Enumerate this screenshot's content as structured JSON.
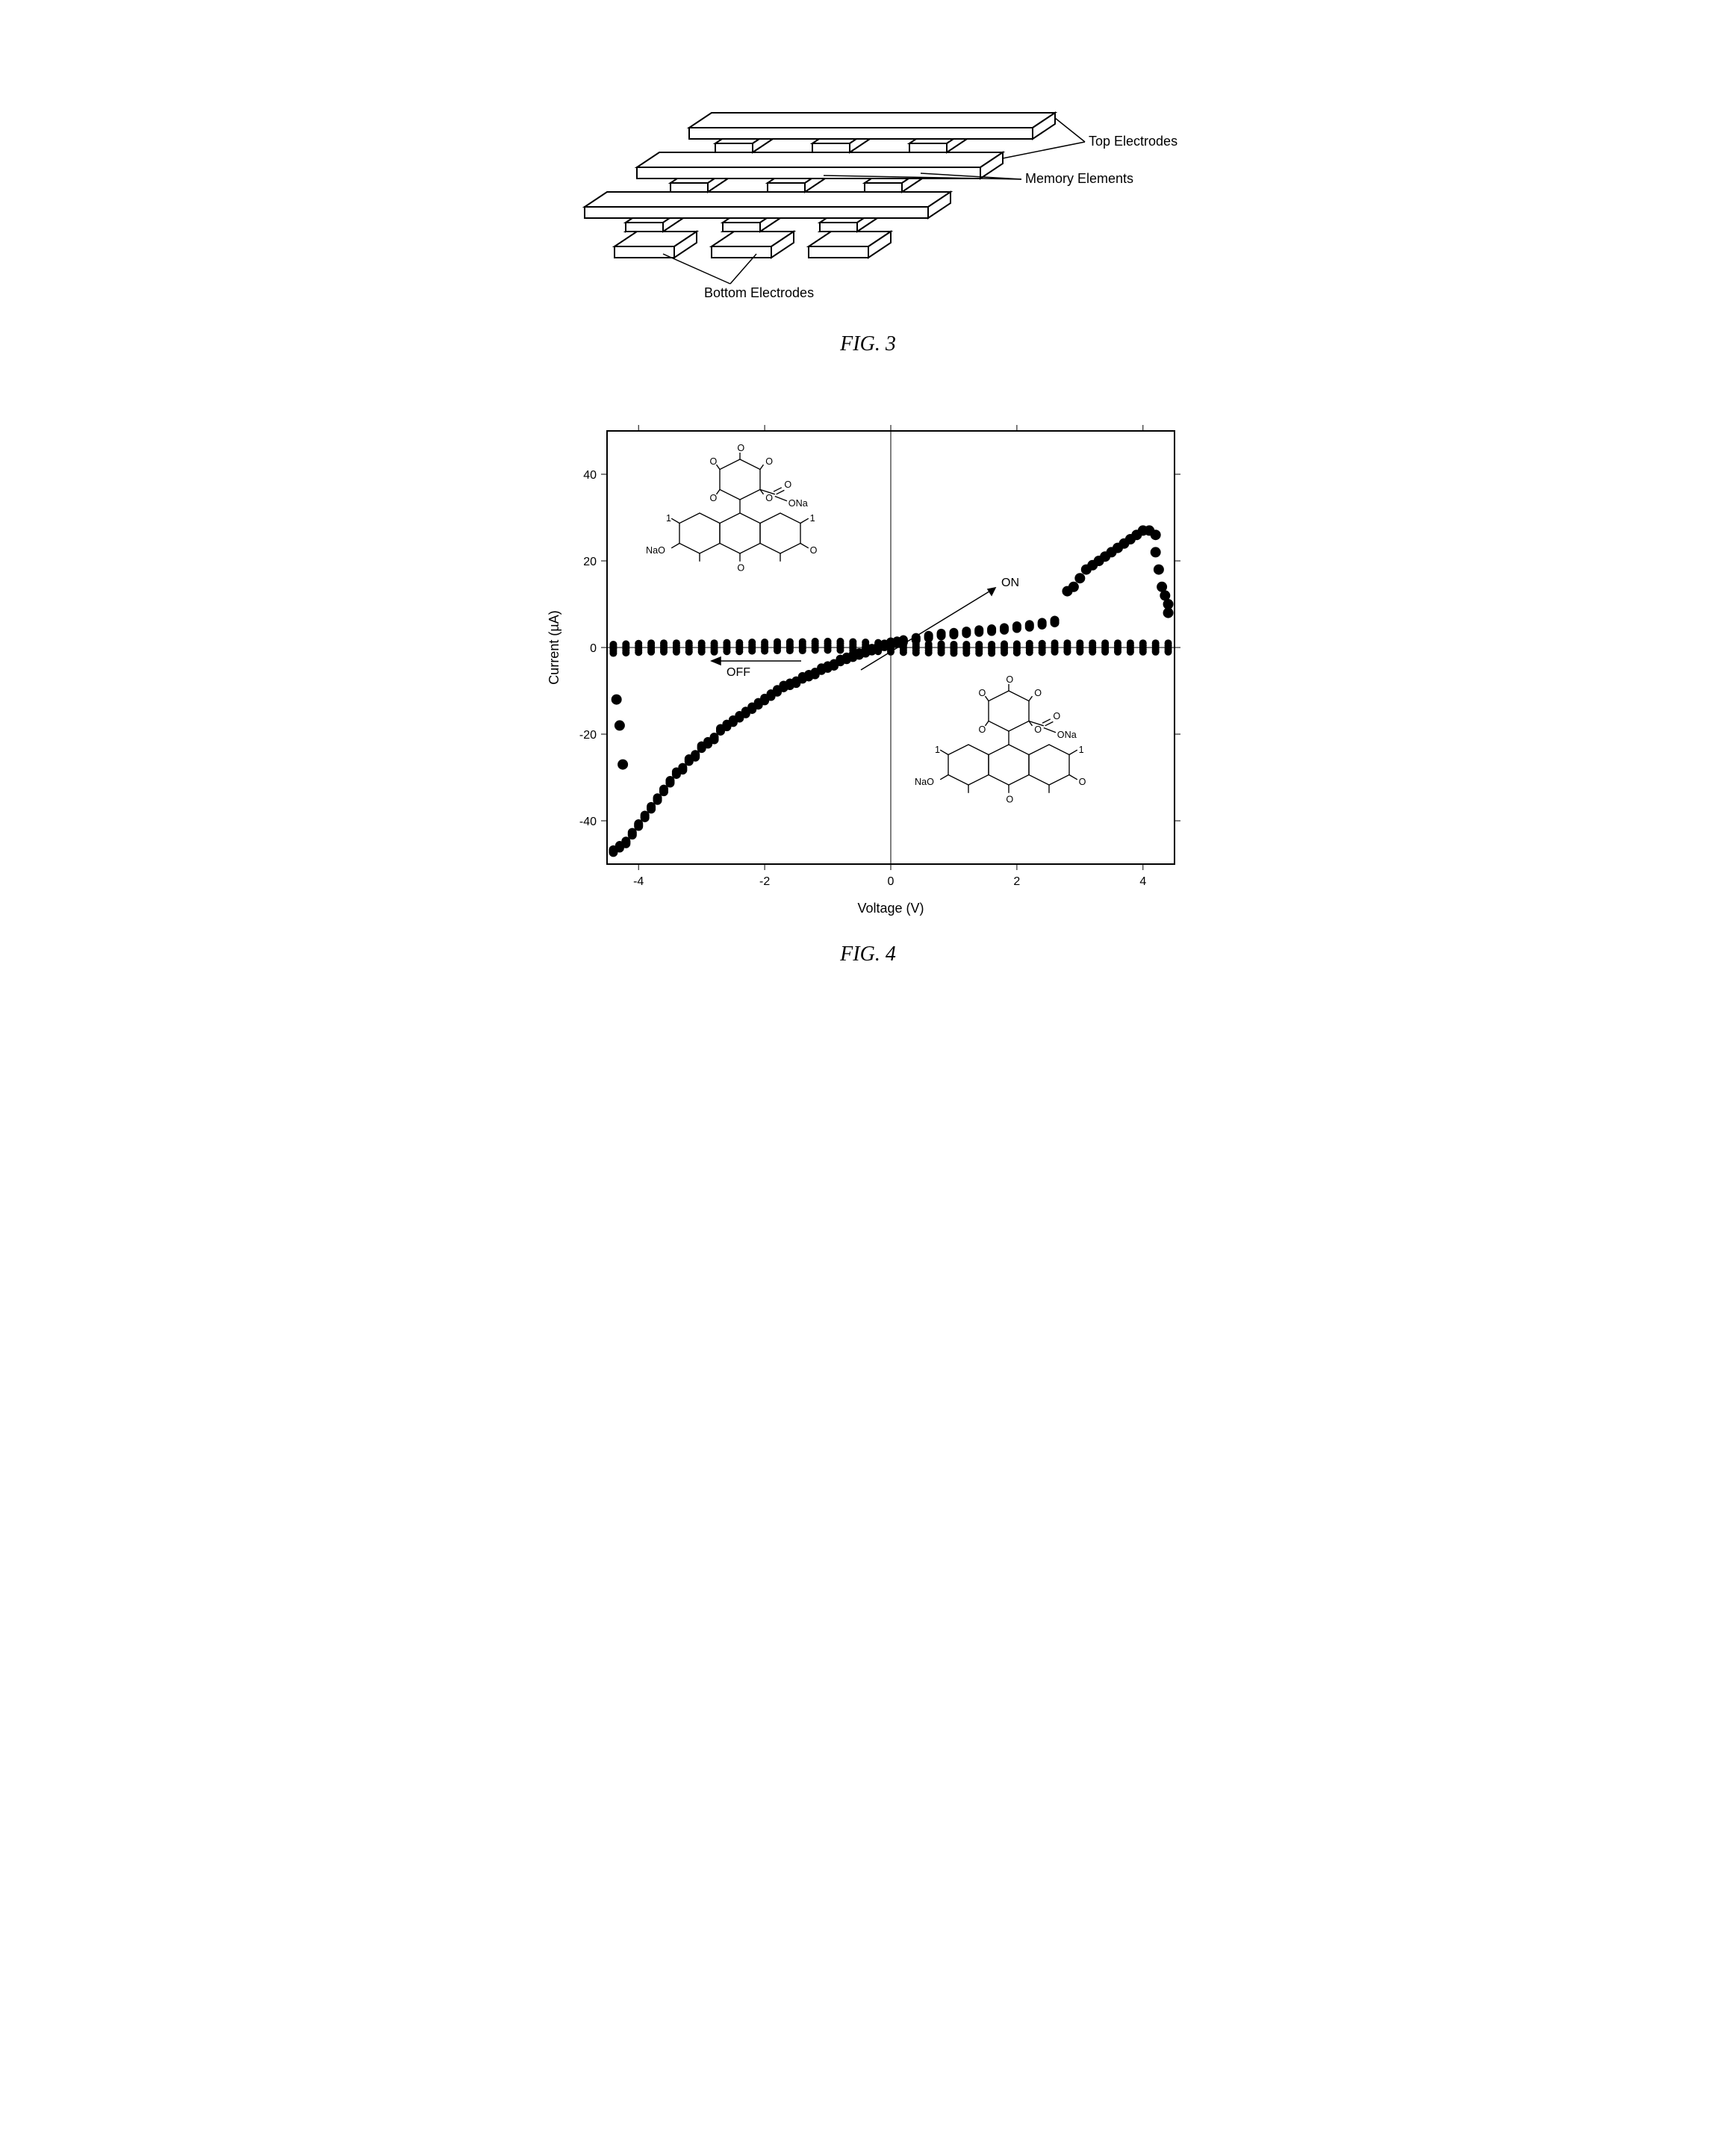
{
  "fig3": {
    "title": "FIG. 3",
    "labels": {
      "top": "Top Electrodes",
      "memory": "Memory Elements",
      "bottom": "Bottom Electrodes"
    },
    "stroke": "#000000",
    "fill": "#ffffff",
    "stroke_width": 2
  },
  "fig4": {
    "title": "FIG. 4",
    "type": "scatter",
    "xlabel": "Voltage (V)",
    "ylabel": "Current (µA)",
    "xlim": [
      -4.5,
      4.5
    ],
    "ylim": [
      -50,
      50
    ],
    "xticks": [
      -4,
      -2,
      0,
      2,
      4
    ],
    "yticks": [
      -40,
      -20,
      0,
      20,
      40
    ],
    "plot_bg": "#ffffff",
    "axis_color": "#000000",
    "marker_color": "#000000",
    "marker_size": 6,
    "border_width": 2,
    "annotations": {
      "on": "ON",
      "off": "OFF"
    },
    "molecule_atoms": {
      "O": "O",
      "ONa": "ONa",
      "NaO": "NaO",
      "one": "1"
    },
    "flat_line": [
      [
        -4.4,
        -0.3
      ],
      [
        -4.2,
        -0.2
      ],
      [
        -4,
        -0.1
      ],
      [
        -3.8,
        0
      ],
      [
        -3.6,
        0
      ],
      [
        -3.4,
        0
      ],
      [
        -3.2,
        0
      ],
      [
        -3,
        0
      ],
      [
        -2.8,
        0
      ],
      [
        -2.6,
        0.1
      ],
      [
        -2.4,
        0.1
      ],
      [
        -2.2,
        0.2
      ],
      [
        -2,
        0.2
      ],
      [
        -1.8,
        0.3
      ],
      [
        -1.6,
        0.3
      ],
      [
        -1.4,
        0.3
      ],
      [
        -1.2,
        0.4
      ],
      [
        -1,
        0.4
      ],
      [
        -0.8,
        0.4
      ],
      [
        -0.6,
        0.3
      ],
      [
        -0.4,
        0.2
      ],
      [
        -0.2,
        0.1
      ],
      [
        0,
        0
      ],
      [
        0.2,
        -0.1
      ],
      [
        0.4,
        -0.2
      ],
      [
        0.6,
        -0.2
      ],
      [
        0.8,
        -0.2
      ],
      [
        1,
        -0.3
      ],
      [
        1.2,
        -0.3
      ],
      [
        1.4,
        -0.3
      ],
      [
        1.6,
        -0.3
      ],
      [
        1.8,
        -0.2
      ],
      [
        2,
        -0.2
      ],
      [
        2.2,
        -0.1
      ],
      [
        2.4,
        -0.1
      ],
      [
        2.6,
        0
      ],
      [
        2.8,
        0
      ],
      [
        3,
        0
      ],
      [
        3.2,
        0
      ],
      [
        3.4,
        0
      ],
      [
        3.6,
        0
      ],
      [
        3.8,
        0
      ],
      [
        4,
        0
      ],
      [
        4.2,
        0
      ],
      [
        4.4,
        0
      ]
    ],
    "on_curve": [
      [
        -4.4,
        -47
      ],
      [
        -4.3,
        -46
      ],
      [
        -4.2,
        -45
      ],
      [
        -4.1,
        -43
      ],
      [
        -4,
        -41
      ],
      [
        -3.9,
        -39
      ],
      [
        -3.8,
        -37
      ],
      [
        -3.7,
        -35
      ],
      [
        -3.6,
        -33
      ],
      [
        -3.5,
        -31
      ],
      [
        -3.4,
        -29
      ],
      [
        -3.3,
        -28
      ],
      [
        -3.2,
        -26
      ],
      [
        -3.1,
        -25
      ],
      [
        -3,
        -23
      ],
      [
        -2.9,
        -22
      ],
      [
        -2.8,
        -21
      ],
      [
        -2.7,
        -19
      ],
      [
        -2.6,
        -18
      ],
      [
        -2.5,
        -17
      ],
      [
        -2.4,
        -16
      ],
      [
        -2.3,
        -15
      ],
      [
        -2.2,
        -14
      ],
      [
        -2.1,
        -13
      ],
      [
        -2,
        -12
      ],
      [
        -1.9,
        -11
      ],
      [
        -1.8,
        -10
      ],
      [
        -1.7,
        -9
      ],
      [
        -1.6,
        -8.5
      ],
      [
        -1.5,
        -8
      ],
      [
        -1.4,
        -7
      ],
      [
        -1.3,
        -6.5
      ],
      [
        -1.2,
        -6
      ],
      [
        -1.1,
        -5
      ],
      [
        -1,
        -4.5
      ],
      [
        -0.9,
        -4
      ],
      [
        -0.8,
        -3
      ],
      [
        -0.7,
        -2.5
      ],
      [
        -0.6,
        -2
      ],
      [
        -0.5,
        -1.5
      ],
      [
        -0.4,
        -1
      ],
      [
        -0.3,
        -0.5
      ],
      [
        -0.2,
        0
      ],
      [
        -0.1,
        0.5
      ],
      [
        0,
        1
      ],
      [
        0.1,
        1.2
      ],
      [
        0.2,
        1.5
      ],
      [
        0.4,
        2
      ],
      [
        0.6,
        2.5
      ],
      [
        0.8,
        3
      ],
      [
        1,
        3.2
      ],
      [
        1.2,
        3.5
      ],
      [
        1.4,
        3.8
      ],
      [
        1.6,
        4
      ],
      [
        1.8,
        4.3
      ],
      [
        2,
        4.7
      ],
      [
        2.2,
        5
      ],
      [
        2.4,
        5.5
      ],
      [
        2.6,
        6
      ]
    ],
    "on_hump": [
      [
        2.8,
        13
      ],
      [
        2.9,
        14
      ],
      [
        3,
        16
      ],
      [
        3.1,
        18
      ],
      [
        3.2,
        19
      ],
      [
        3.3,
        20
      ],
      [
        3.4,
        21
      ],
      [
        3.5,
        22
      ],
      [
        3.6,
        23
      ],
      [
        3.7,
        24
      ],
      [
        3.8,
        25
      ],
      [
        3.9,
        26
      ],
      [
        4,
        27
      ],
      [
        4.1,
        27
      ],
      [
        4.2,
        26
      ],
      [
        4.2,
        22
      ],
      [
        4.25,
        18
      ],
      [
        4.3,
        14
      ],
      [
        4.35,
        12
      ],
      [
        4.4,
        10
      ],
      [
        4.4,
        8
      ]
    ],
    "neg_drop": [
      [
        -4.35,
        -12
      ],
      [
        -4.3,
        -18
      ],
      [
        -4.25,
        -27
      ]
    ]
  }
}
